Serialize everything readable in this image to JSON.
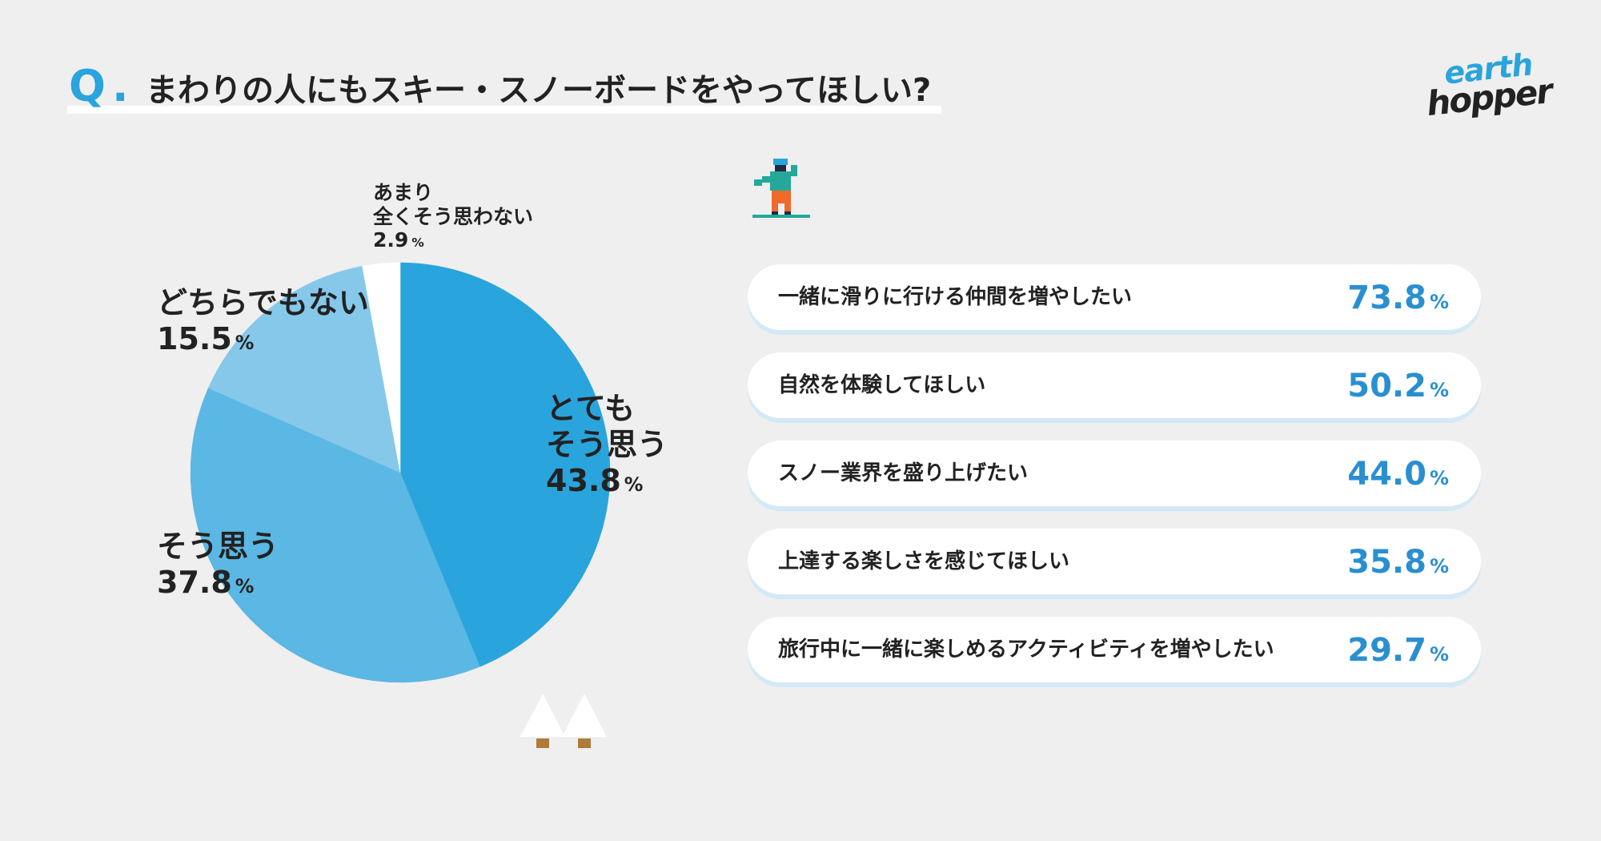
{
  "header": {
    "q_mark": "Q",
    "q_dot": ".",
    "title": "まわりの人にもスキー・スノーボードをやってほしい?"
  },
  "logo": {
    "line1": "earth",
    "line2": "hopper"
  },
  "colors": {
    "background": "#efefef",
    "accent": "#2aa4dc",
    "slice_strong_agree": "#2aa4dc",
    "slice_agree": "#5bb7e3",
    "slice_neutral": "#86c8ea",
    "slice_disagree": "#ffffff",
    "bar_value": "#2a8fd0"
  },
  "chart_data": [
    {
      "type": "pie",
      "slices": [
        {
          "label_lines": [
            "とても",
            "そう思う"
          ],
          "value": 43.8,
          "value_text": "43.8",
          "unit": "%",
          "color": "#2aa4dc"
        },
        {
          "label_lines": [
            "そう思う"
          ],
          "value": 37.8,
          "value_text": "37.8",
          "unit": "%",
          "color": "#5bb7e3"
        },
        {
          "label_lines": [
            "どちらでもない"
          ],
          "value": 15.5,
          "value_text": "15.5",
          "unit": "%",
          "color": "#86c8ea"
        },
        {
          "label_lines": [
            "あまり",
            "全くそう思わない"
          ],
          "value": 2.9,
          "value_text": "2.9",
          "unit": "%",
          "color": "#ffffff"
        }
      ]
    },
    {
      "type": "bar",
      "categories": [
        "一緒に滑りに行ける仲間を増やしたい",
        "自然を体験してほしい",
        "スノー業界を盛り上げたい",
        "上達する楽しさを感じてほしい",
        "旅行中に一緒に楽しめるアクティビティを増やしたい"
      ],
      "values": [
        73.8,
        50.2,
        44.0,
        35.8,
        29.7
      ],
      "value_texts": [
        "73.8",
        "50.2",
        "44.0",
        "35.8",
        "29.7"
      ],
      "unit": "%"
    }
  ]
}
